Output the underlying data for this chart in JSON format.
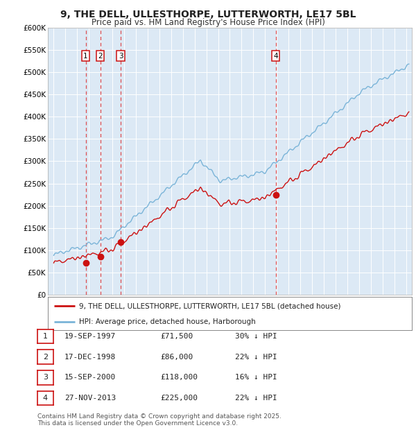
{
  "title": "9, THE DELL, ULLESTHORPE, LUTTERWORTH, LE17 5BL",
  "subtitle": "Price paid vs. HM Land Registry's House Price Index (HPI)",
  "ylim": [
    0,
    600000
  ],
  "yticks": [
    0,
    50000,
    100000,
    150000,
    200000,
    250000,
    300000,
    350000,
    400000,
    450000,
    500000,
    550000,
    600000
  ],
  "ytick_labels": [
    "£0",
    "£50K",
    "£100K",
    "£150K",
    "£200K",
    "£250K",
    "£300K",
    "£350K",
    "£400K",
    "£450K",
    "£500K",
    "£550K",
    "£600K"
  ],
  "background_color": "#dce9f5",
  "hpi_color": "#7ab4d8",
  "price_color": "#cc1111",
  "grid_color": "#ffffff",
  "dashed_line_color": "#dd3333",
  "sale_points": [
    {
      "date_num": 1997.72,
      "price": 71500,
      "label": "1"
    },
    {
      "date_num": 1998.96,
      "price": 86000,
      "label": "2"
    },
    {
      "date_num": 2000.71,
      "price": 118000,
      "label": "3"
    },
    {
      "date_num": 2013.9,
      "price": 225000,
      "label": "4"
    }
  ],
  "legend_price_label": "9, THE DELL, ULLESTHORPE, LUTTERWORTH, LE17 5BL (detached house)",
  "legend_hpi_label": "HPI: Average price, detached house, Harborough",
  "table_rows": [
    {
      "num": "1",
      "date": "19-SEP-1997",
      "price": "£71,500",
      "note": "30% ↓ HPI"
    },
    {
      "num": "2",
      "date": "17-DEC-1998",
      "price": "£86,000",
      "note": "22% ↓ HPI"
    },
    {
      "num": "3",
      "date": "15-SEP-2000",
      "price": "£118,000",
      "note": "16% ↓ HPI"
    },
    {
      "num": "4",
      "date": "27-NOV-2013",
      "price": "£225,000",
      "note": "22% ↓ HPI"
    }
  ],
  "footer_line1": "Contains HM Land Registry data © Crown copyright and database right 2025.",
  "footer_line2": "This data is licensed under the Open Government Licence v3.0.",
  "xlim_start": 1994.5,
  "xlim_end": 2025.5
}
